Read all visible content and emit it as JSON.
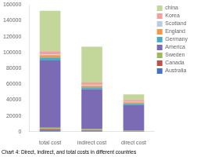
{
  "chart_data": {
    "type": "bar",
    "stacked": true,
    "title": "Chart 4: Direct, indirect, and total costs in different countries",
    "categories": [
      "total cost",
      "indirect cost",
      "direct cost"
    ],
    "series": [
      {
        "name": "Australia",
        "color": "#4472c4",
        "values": [
          1500,
          1000,
          500
        ]
      },
      {
        "name": "Canada",
        "color": "#c0504d",
        "values": [
          1500,
          1000,
          500
        ]
      },
      {
        "name": "Sweden",
        "color": "#9bbb59",
        "values": [
          2000,
          1500,
          800
        ]
      },
      {
        "name": "America",
        "color": "#7b6bb5",
        "values": [
          85000,
          50000,
          32000
        ]
      },
      {
        "name": "Germany",
        "color": "#4bacc6",
        "values": [
          3500,
          2500,
          2000
        ]
      },
      {
        "name": "England",
        "color": "#f79646",
        "values": [
          3000,
          2000,
          1500
        ]
      },
      {
        "name": "Scotland",
        "color": "#b8cce4",
        "values": [
          1000,
          700,
          400
        ]
      },
      {
        "name": "Korea",
        "color": "#f2a0a0",
        "values": [
          4000,
          3500,
          2500
        ]
      },
      {
        "name": "china",
        "color": "#c4d79b",
        "values": [
          51000,
          45000,
          6800
        ]
      }
    ],
    "ylim": [
      0,
      160000
    ],
    "yticks": [
      0,
      20000,
      40000,
      60000,
      80000,
      100000,
      120000,
      140000,
      160000
    ],
    "grid": false,
    "legend": "right"
  }
}
